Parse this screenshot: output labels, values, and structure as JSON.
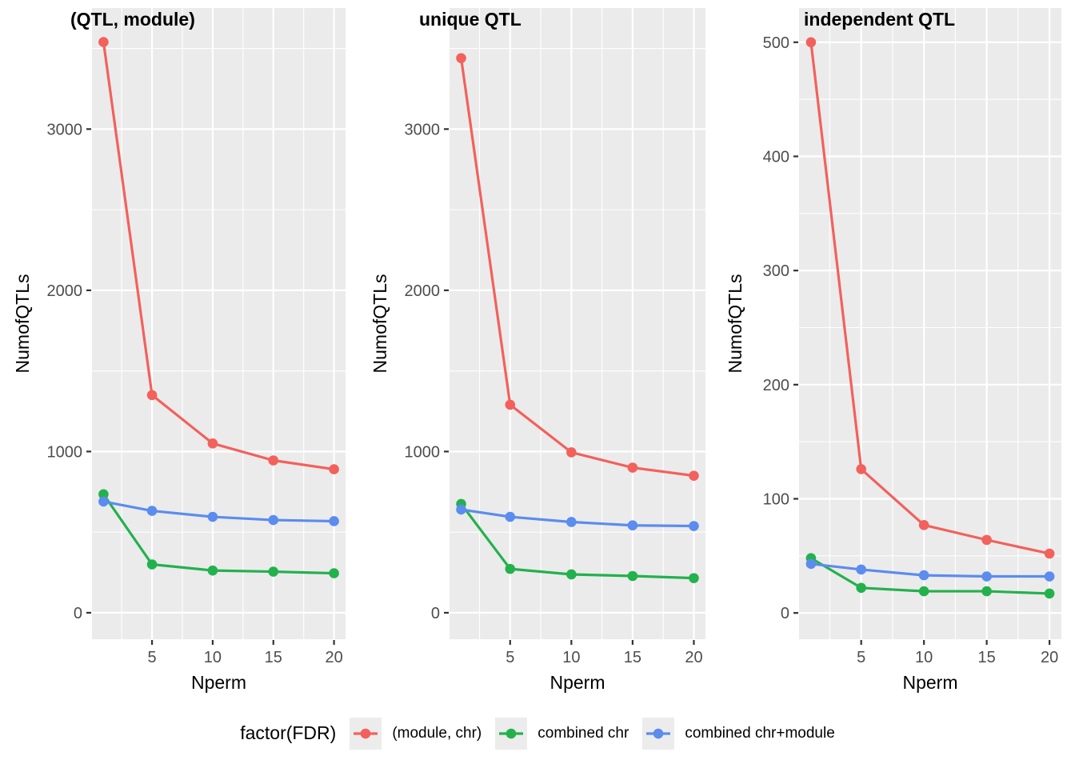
{
  "figure": {
    "x_axis_label": "Nperm",
    "y_axis_label": "NumofQTLs"
  },
  "legend": {
    "title": "factor(FDR)",
    "position": "bottom",
    "items": [
      {
        "label": "(module, chr)",
        "color": "#F2615C"
      },
      {
        "label": "combined chr",
        "color": "#23B14D"
      },
      {
        "label": "combined chr+module",
        "color": "#5B8CEE"
      }
    ]
  },
  "style": {
    "panel_background": "#EBEBEB",
    "grid_color": "#FFFFFF",
    "tick_mark_color": "#333333",
    "tick_label_color": "#4D4D4D",
    "axis_label_color": "#000000",
    "legend_key_background": "#ECECEC"
  },
  "chart_data": [
    {
      "type": "line",
      "title": "(QTL, module)",
      "xlabel": "Nperm",
      "ylabel": "NumofQTLs",
      "grid": true,
      "legend_position": "bottom",
      "x": [
        1,
        5,
        10,
        15,
        20
      ],
      "xticks": [
        5,
        10,
        15,
        20
      ],
      "xlim": [
        0.05,
        20.95
      ],
      "yticks": [
        0,
        1000,
        2000,
        3000
      ],
      "ylim": [
        -164,
        3751
      ],
      "series": [
        {
          "name": "(module, chr)",
          "values": [
            3540,
            1350,
            1050,
            945,
            890
          ]
        },
        {
          "name": "combined chr",
          "values": [
            735,
            300,
            262,
            255,
            245
          ]
        },
        {
          "name": "combined chr+module",
          "values": [
            690,
            632,
            595,
            575,
            568
          ]
        }
      ]
    },
    {
      "type": "line",
      "title": "unique QTL",
      "xlabel": "Nperm",
      "ylabel": "NumofQTLs",
      "grid": true,
      "legend_position": "bottom",
      "x": [
        1,
        5,
        10,
        15,
        20
      ],
      "xticks": [
        5,
        10,
        15,
        20
      ],
      "xlim": [
        0.05,
        20.95
      ],
      "yticks": [
        0,
        1000,
        2000,
        3000
      ],
      "ylim": [
        -164,
        3751
      ],
      "series": [
        {
          "name": "(module, chr)",
          "values": [
            3440,
            1290,
            995,
            900,
            850
          ]
        },
        {
          "name": "combined chr",
          "values": [
            675,
            272,
            238,
            228,
            215
          ]
        },
        {
          "name": "combined chr+module",
          "values": [
            640,
            595,
            563,
            542,
            538
          ]
        }
      ]
    },
    {
      "type": "line",
      "title": "independent QTL",
      "xlabel": "Nperm",
      "ylabel": "NumofQTLs",
      "grid": true,
      "legend_position": "bottom",
      "x": [
        1,
        5,
        10,
        15,
        20
      ],
      "xticks": [
        5,
        10,
        15,
        20
      ],
      "xlim": [
        0.05,
        20.95
      ],
      "yticks": [
        0,
        100,
        200,
        300,
        400,
        500
      ],
      "ylim": [
        -23,
        530
      ],
      "series": [
        {
          "name": "(module, chr)",
          "values": [
            500,
            126,
            77,
            64,
            52
          ]
        },
        {
          "name": "combined chr",
          "values": [
            48,
            22,
            19,
            19,
            17
          ]
        },
        {
          "name": "combined chr+module",
          "values": [
            43,
            38,
            33,
            32,
            32
          ]
        }
      ]
    }
  ]
}
